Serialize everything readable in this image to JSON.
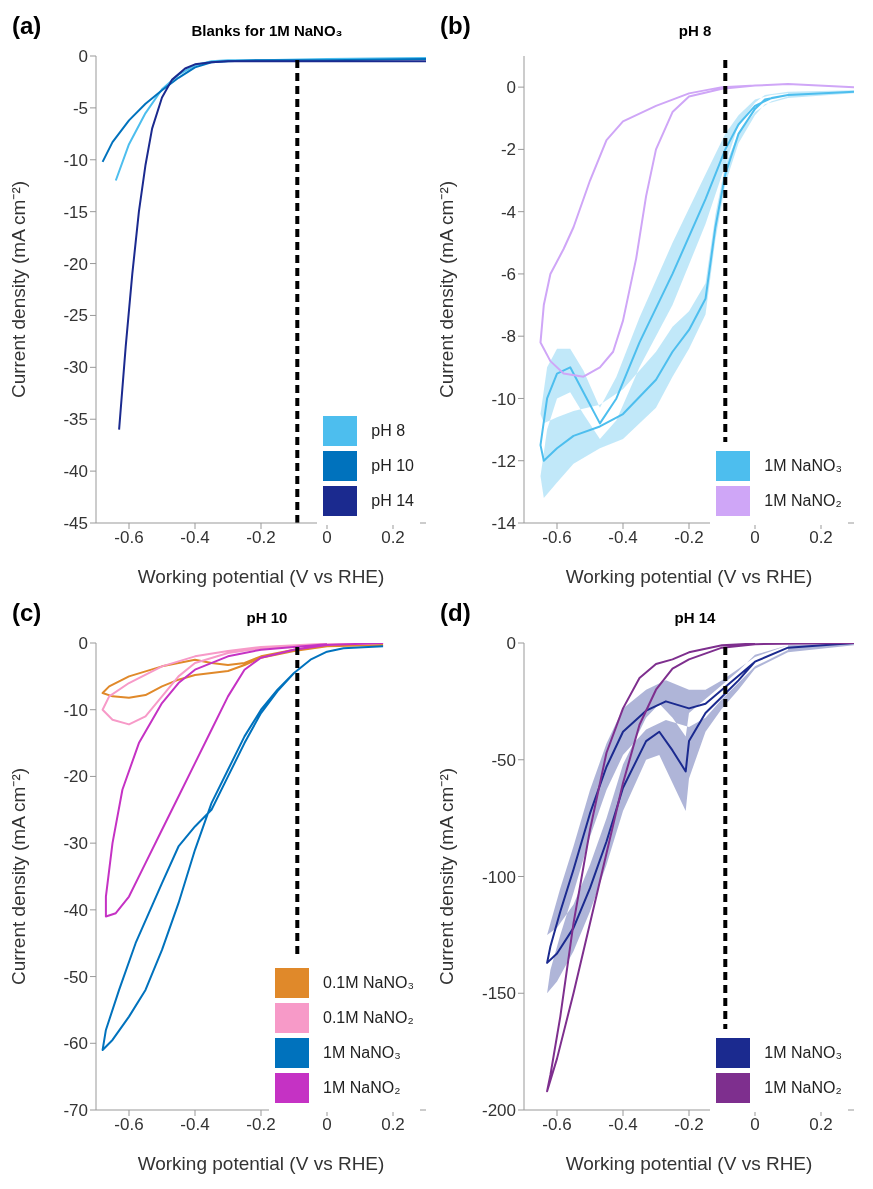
{
  "chart_data": [
    {
      "type": "line",
      "title": "Blanks for 1M NaNO₃",
      "annotations": [
        "(a)"
      ],
      "xlabel": "Working potential (V vs RHE)",
      "ylabel": "Current density (mA cm⁻²)",
      "xlim": [
        -0.7,
        0.3
      ],
      "xticks": [
        -0.6,
        -0.4,
        -0.2,
        0,
        0.2
      ],
      "ylim": [
        -45,
        0
      ],
      "yticks": [
        -45,
        -40,
        -35,
        -30,
        -25,
        -20,
        -15,
        -10,
        -5,
        0
      ],
      "legend": "bottom right",
      "ref_lines": [
        {
          "axis": "x",
          "value": -0.09,
          "color": "#000000",
          "line_style": "dashed"
        }
      ],
      "series": [
        {
          "name": "pH 8",
          "color": "#4dbeee",
          "x": [
            -0.64,
            -0.6,
            -0.55,
            -0.5,
            -0.45,
            -0.4,
            -0.35,
            -0.3,
            -0.2,
            0,
            0.3
          ],
          "values": [
            -12,
            -8.5,
            -5.5,
            -3.2,
            -1.8,
            -0.9,
            -0.5,
            -0.4,
            -0.4,
            -0.3,
            -0.2
          ]
        },
        {
          "name": "pH 10",
          "color": "#0072bd",
          "x": [
            -0.68,
            -0.65,
            -0.6,
            -0.55,
            -0.5,
            -0.45,
            -0.4,
            -0.35,
            -0.3,
            -0.2,
            0,
            0.3
          ],
          "values": [
            -10.2,
            -8.3,
            -6.2,
            -4.6,
            -3.3,
            -2.1,
            -1.1,
            -0.6,
            -0.5,
            -0.4,
            -0.4,
            -0.3
          ]
        },
        {
          "name": "pH 14",
          "color": "#1b2a8f",
          "x": [
            -0.63,
            -0.61,
            -0.59,
            -0.57,
            -0.55,
            -0.53,
            -0.5,
            -0.47,
            -0.43,
            -0.4,
            -0.35,
            -0.3,
            0,
            0.3
          ],
          "values": [
            -36,
            -28,
            -21,
            -15,
            -10.5,
            -7,
            -4,
            -2.3,
            -1.2,
            -0.8,
            -0.6,
            -0.5,
            -0.5,
            -0.5
          ]
        }
      ]
    },
    {
      "type": "line",
      "title": "pH 8",
      "annotations": [
        "(b)"
      ],
      "xlabel": "Working potential (V vs RHE)",
      "ylabel": "Current density (mA cm⁻²)",
      "xlim": [
        -0.7,
        0.3
      ],
      "xticks": [
        -0.6,
        -0.4,
        -0.2,
        0,
        0.2
      ],
      "ylim": [
        -14,
        1
      ],
      "yticks": [
        -14,
        -12,
        -10,
        -8,
        -6,
        -4,
        -2,
        0
      ],
      "legend": "bottom right",
      "ref_lines": [
        {
          "axis": "x",
          "value": -0.09,
          "color": "#000000",
          "line_style": "dashed"
        }
      ],
      "series": [
        {
          "name": "1M NaNO₃",
          "color": "#4dbeee",
          "x": [
            0.3,
            0.1,
            0.03,
            0,
            -0.05,
            -0.09,
            -0.12,
            -0.15,
            -0.2,
            -0.25,
            -0.3,
            -0.4,
            -0.47,
            -0.55,
            -0.6,
            -0.64,
            -0.65,
            -0.63,
            -0.6,
            -0.56,
            -0.52,
            -0.47,
            -0.42,
            -0.35,
            -0.25,
            -0.15,
            -0.09,
            -0.05,
            0,
            0.05,
            0.1
          ],
          "values": [
            -0.15,
            -0.25,
            -0.4,
            -0.7,
            -1.5,
            -2.8,
            -4.5,
            -6.8,
            -7.8,
            -8.5,
            -9.4,
            -10.5,
            -10.9,
            -11.2,
            -11.6,
            -12,
            -11.5,
            -10,
            -9.2,
            -9,
            -9.8,
            -10.8,
            -10,
            -8.2,
            -6,
            -3.6,
            -2,
            -1.2,
            -0.6,
            -0.35,
            -0.25
          ],
          "lower": [
            -0.2,
            -0.35,
            -0.55,
            -0.9,
            -1.8,
            -3.1,
            -4.9,
            -7.3,
            -8.4,
            -9.3,
            -10.3,
            -11.3,
            -11.6,
            -12.1,
            -12.7,
            -13.2,
            -12.5,
            -11,
            -10,
            -9.8,
            -10.5,
            -11.3,
            -10.7,
            -9,
            -7,
            -4.4,
            -2.5,
            -1.5,
            -0.8,
            -0.45,
            -0.3
          ],
          "upper": [
            -0.1,
            -0.15,
            -0.25,
            -0.5,
            -1.2,
            -2.5,
            -4.1,
            -6.3,
            -7.2,
            -7.7,
            -8.5,
            -9.7,
            -10.2,
            -10.4,
            -10.6,
            -10.8,
            -10.5,
            -9,
            -8.4,
            -8.4,
            -9.1,
            -10.3,
            -9.3,
            -7.4,
            -5,
            -2.8,
            -1.5,
            -0.9,
            -0.4,
            -0.25,
            -0.2
          ]
        },
        {
          "name": "1M NaNO₂",
          "color": "#cfa6f7",
          "x": [
            0.3,
            0.1,
            0,
            -0.1,
            -0.2,
            -0.25,
            -0.3,
            -0.33,
            -0.36,
            -0.4,
            -0.43,
            -0.47,
            -0.52,
            -0.58,
            -0.62,
            -0.65,
            -0.64,
            -0.62,
            -0.58,
            -0.55,
            -0.5,
            -0.45,
            -0.4,
            -0.3,
            -0.2,
            -0.1,
            0,
            0.1
          ],
          "values": [
            0,
            0.1,
            0.05,
            -0.05,
            -0.3,
            -0.8,
            -2,
            -3.5,
            -5.5,
            -7.5,
            -8.5,
            -9,
            -9.3,
            -9.2,
            -8.8,
            -8.2,
            -7,
            -6,
            -5.2,
            -4.5,
            -3,
            -1.7,
            -1.1,
            -0.6,
            -0.2,
            0,
            0.05,
            0.1
          ]
        }
      ]
    },
    {
      "type": "line",
      "title": "pH 10",
      "annotations": [
        "(c)"
      ],
      "xlabel": "Working potential (V vs RHE)",
      "ylabel": "Current density (mA cm⁻²)",
      "xlim": [
        -0.7,
        0.3
      ],
      "xticks": [
        -0.6,
        -0.4,
        -0.2,
        0,
        0.2
      ],
      "ylim": [
        -70,
        0
      ],
      "yticks": [
        -70,
        -60,
        -50,
        -40,
        -30,
        -20,
        -10,
        0
      ],
      "legend": "bottom right",
      "ref_lines": [
        {
          "axis": "x",
          "value": -0.09,
          "color": "#000000",
          "line_style": "dashed"
        }
      ],
      "series": [
        {
          "name": "0.1M NaNO₃",
          "color": "#e0892a",
          "x": [
            0.17,
            0,
            -0.1,
            -0.2,
            -0.25,
            -0.3,
            -0.35,
            -0.4,
            -0.45,
            -0.5,
            -0.55,
            -0.6,
            -0.65,
            -0.68,
            -0.66,
            -0.6,
            -0.5,
            -0.4,
            -0.35,
            -0.3,
            -0.25,
            -0.2,
            -0.1,
            0
          ],
          "values": [
            -0.3,
            -0.5,
            -1.2,
            -2.2,
            -3.3,
            -4.2,
            -4.5,
            -4.8,
            -5.5,
            -6.5,
            -7.8,
            -8.2,
            -8,
            -7.5,
            -6.5,
            -5,
            -3.5,
            -2.5,
            -3,
            -3.3,
            -3,
            -2,
            -1,
            -0.5
          ]
        },
        {
          "name": "0.1M NaNO₂",
          "color": "#f79ac8",
          "x": [
            0.17,
            0,
            -0.2,
            -0.3,
            -0.4,
            -0.45,
            -0.5,
            -0.55,
            -0.6,
            -0.65,
            -0.68,
            -0.66,
            -0.6,
            -0.5,
            -0.4,
            -0.3,
            -0.2,
            0
          ],
          "values": [
            0,
            -0.2,
            -0.8,
            -1.5,
            -3,
            -5,
            -8,
            -11,
            -12.2,
            -11.5,
            -10,
            -8,
            -6,
            -3.5,
            -2,
            -1.2,
            -0.6,
            -0.1
          ]
        },
        {
          "name": "1M NaNO₃",
          "color": "#0072bd",
          "x": [
            0.17,
            0.05,
            0,
            -0.05,
            -0.1,
            -0.15,
            -0.2,
            -0.25,
            -0.3,
            -0.35,
            -0.4,
            -0.45,
            -0.5,
            -0.55,
            -0.6,
            -0.65,
            -0.68,
            -0.67,
            -0.63,
            -0.58,
            -0.5,
            -0.45,
            -0.4,
            -0.35,
            -0.3,
            -0.25,
            -0.2,
            -0.15,
            -0.1,
            -0.05,
            0
          ],
          "values": [
            -0.5,
            -0.8,
            -1.3,
            -2.5,
            -4.5,
            -7,
            -10,
            -14,
            -19,
            -24,
            -31,
            -39,
            -46,
            -52,
            -56,
            -59.5,
            -61,
            -58,
            -52,
            -45,
            -36,
            -30.5,
            -27.5,
            -25,
            -20,
            -15,
            -10.5,
            -7.2,
            -4.5,
            -2.5,
            -1.3
          ]
        },
        {
          "name": "1M NaNO₂",
          "color": "#c532c4",
          "x": [
            0.17,
            0,
            -0.1,
            -0.2,
            -0.25,
            -0.3,
            -0.35,
            -0.4,
            -0.45,
            -0.5,
            -0.55,
            -0.6,
            -0.64,
            -0.67,
            -0.67,
            -0.65,
            -0.62,
            -0.57,
            -0.5,
            -0.45,
            -0.4,
            -0.3,
            -0.2,
            0
          ],
          "values": [
            0,
            -0.3,
            -1,
            -2.2,
            -4,
            -8,
            -13,
            -18,
            -23,
            -28,
            -33,
            -38,
            -40.5,
            -41,
            -38,
            -30,
            -22,
            -15,
            -9,
            -6,
            -4,
            -2,
            -1,
            -0.2
          ]
        }
      ]
    },
    {
      "type": "line",
      "title": "pH 14",
      "annotations": [
        "(d)"
      ],
      "xlabel": "Working potential (V vs RHE)",
      "ylabel": "Current density (mA cm⁻²)",
      "xlim": [
        -0.7,
        0.3
      ],
      "xticks": [
        -0.6,
        -0.4,
        -0.2,
        0,
        0.2
      ],
      "ylim": [
        -200,
        0
      ],
      "yticks": [
        -200,
        -150,
        -100,
        -50,
        0
      ],
      "legend": "bottom right",
      "ref_lines": [
        {
          "axis": "x",
          "value": -0.09,
          "color": "#000000",
          "line_style": "dashed"
        }
      ],
      "series": [
        {
          "name": "1M NaNO₃",
          "color": "#1b2a8f",
          "x": [
            0.3,
            0.1,
            0,
            -0.05,
            -0.1,
            -0.15,
            -0.2,
            -0.21,
            -0.25,
            -0.29,
            -0.33,
            -0.4,
            -0.45,
            -0.5,
            -0.55,
            -0.6,
            -0.63,
            -0.62,
            -0.59,
            -0.55,
            -0.5,
            -0.45,
            -0.4,
            -0.33,
            -0.27,
            -0.2,
            -0.15,
            -0.1,
            -0.05,
            0,
            0.1
          ],
          "values": [
            0,
            -2,
            -8,
            -16,
            -23,
            -30,
            -42,
            -55,
            -46,
            -38,
            -42,
            -62,
            -85,
            -105,
            -122,
            -133,
            -137,
            -130,
            -115,
            -97,
            -73,
            -53,
            -38,
            -29,
            -25,
            -28,
            -26,
            -20,
            -14,
            -8,
            -2
          ],
          "lower": [
            -1,
            -4,
            -11,
            -20,
            -28,
            -38,
            -58,
            -72,
            -60,
            -48,
            -50,
            -72,
            -95,
            -115,
            -132,
            -145,
            -150,
            -140,
            -125,
            -107,
            -83,
            -63,
            -48,
            -37,
            -33,
            -36,
            -32,
            -24,
            -17,
            -10,
            -3
          ],
          "upper": [
            0,
            -1,
            -5,
            -12,
            -18,
            -24,
            -30,
            -40,
            -32,
            -26,
            -32,
            -52,
            -75,
            -95,
            -112,
            -122,
            -125,
            -120,
            -105,
            -87,
            -63,
            -43,
            -28,
            -20,
            -16,
            -20,
            -20,
            -16,
            -11,
            -6,
            -1
          ]
        },
        {
          "name": "1M NaNO₂",
          "color": "#7e2f8e",
          "x": [
            0.3,
            0,
            -0.1,
            -0.2,
            -0.25,
            -0.3,
            -0.35,
            -0.4,
            -0.45,
            -0.5,
            -0.55,
            -0.6,
            -0.63,
            -0.62,
            -0.59,
            -0.55,
            -0.5,
            -0.45,
            -0.4,
            -0.35,
            -0.3,
            -0.25,
            -0.2,
            -0.1,
            0
          ],
          "values": [
            0,
            -0.5,
            -2,
            -7,
            -11,
            -20,
            -35,
            -60,
            -90,
            -120,
            -150,
            -178,
            -192,
            -185,
            -160,
            -120,
            -80,
            -47,
            -28,
            -15,
            -9,
            -7,
            -4,
            -1,
            -0.2
          ]
        }
      ]
    }
  ]
}
